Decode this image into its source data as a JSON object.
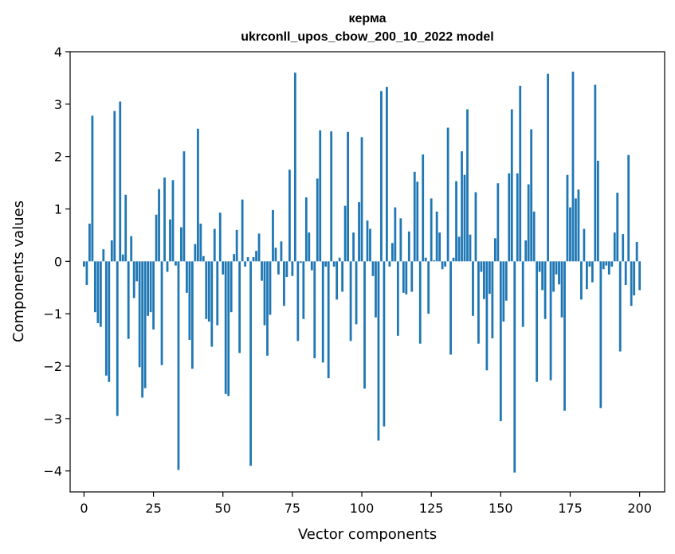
{
  "chart_data": {
    "type": "bar",
    "title": "керма",
    "subtitle": "ukrconll_upos_cbow_200_10_2022 model",
    "xlabel": "Vector components",
    "ylabel": "Components values",
    "xlim": [
      -5,
      209
    ],
    "ylim": [
      -4.4,
      4.0
    ],
    "xticks": [
      0,
      25,
      50,
      75,
      100,
      125,
      150,
      175,
      200
    ],
    "yticks": [
      -4,
      -3,
      -2,
      -1,
      0,
      1,
      2,
      3,
      4
    ],
    "xtick_labels": [
      "0",
      "25",
      "50",
      "75",
      "100",
      "125",
      "150",
      "175",
      "200"
    ],
    "ytick_labels": [
      "−4",
      "−3",
      "−2",
      "−1",
      "0",
      "1",
      "2",
      "3",
      "4"
    ],
    "grid": false,
    "bar_color": "#1f77b4",
    "values": [
      -0.1,
      -0.45,
      0.72,
      2.78,
      -0.97,
      -1.18,
      -1.25,
      0.23,
      -2.18,
      -2.3,
      0.4,
      2.87,
      -2.95,
      3.05,
      0.13,
      1.27,
      -1.48,
      0.48,
      -0.7,
      -0.38,
      -2.02,
      -2.6,
      -2.42,
      -1.04,
      -0.97,
      -1.3,
      0.89,
      1.38,
      -1.98,
      1.6,
      -0.2,
      0.8,
      1.55,
      -0.08,
      -3.98,
      0.65,
      2.1,
      -0.6,
      -1.5,
      -2.05,
      0.33,
      2.53,
      0.72,
      0.1,
      -1.1,
      -1.15,
      -1.63,
      0.62,
      -1.22,
      0.93,
      -0.25,
      -2.53,
      -2.57,
      -0.97,
      0.14,
      0.6,
      -1.75,
      1.18,
      -0.1,
      0.08,
      -3.9,
      0.08,
      0.2,
      0.53,
      -0.37,
      -1.22,
      -1.8,
      -1.02,
      0.98,
      0.26,
      -0.25,
      0.38,
      -0.85,
      -0.3,
      1.75,
      -0.28,
      3.6,
      -1.52,
      -0.03,
      -1.1,
      1.22,
      0.55,
      -0.17,
      -1.85,
      1.58,
      2.5,
      -1.93,
      -0.1,
      -2.23,
      2.48,
      -0.1,
      -0.73,
      0.07,
      -0.58,
      1.06,
      2.47,
      -1.52,
      0.55,
      -1.2,
      1.13,
      2.37,
      -2.43,
      0.78,
      0.62,
      -0.28,
      -1.07,
      -3.42,
      3.25,
      -3.15,
      3.33,
      -0.1,
      0.35,
      1.03,
      -1.42,
      0.82,
      -0.6,
      -0.63,
      0.57,
      -0.58,
      1.71,
      1.52,
      -1.57,
      2.04,
      0.07,
      -1.0,
      1.2,
      0.02,
      0.95,
      0.55,
      -0.15,
      -0.1,
      2.55,
      -1.78,
      0.07,
      1.53,
      0.47,
      2.1,
      1.65,
      2.9,
      0.51,
      -1.04,
      1.32,
      -1.57,
      -0.2,
      -0.72,
      -2.08,
      -0.62,
      -1.47,
      0.44,
      1.49,
      -3.05,
      -1.15,
      -0.75,
      1.68,
      2.9,
      -4.03,
      1.68,
      3.35,
      -1.25,
      0.4,
      1.47,
      2.52,
      0.95,
      -2.3,
      -0.2,
      -0.55,
      -1.1,
      3.58,
      -2.27,
      -0.58,
      -0.25,
      -0.44,
      -1.07,
      -2.85,
      1.65,
      1.03,
      3.62,
      1.2,
      1.37,
      -0.73,
      0.62,
      -0.53,
      -0.1,
      -0.4,
      3.37,
      1.92,
      -2.8,
      -0.15,
      -0.08,
      -0.25,
      -0.1,
      0.55,
      1.31,
      -1.72,
      0.52,
      -0.45,
      2.03,
      -0.85,
      -0.65,
      0.37,
      -0.55
    ]
  }
}
